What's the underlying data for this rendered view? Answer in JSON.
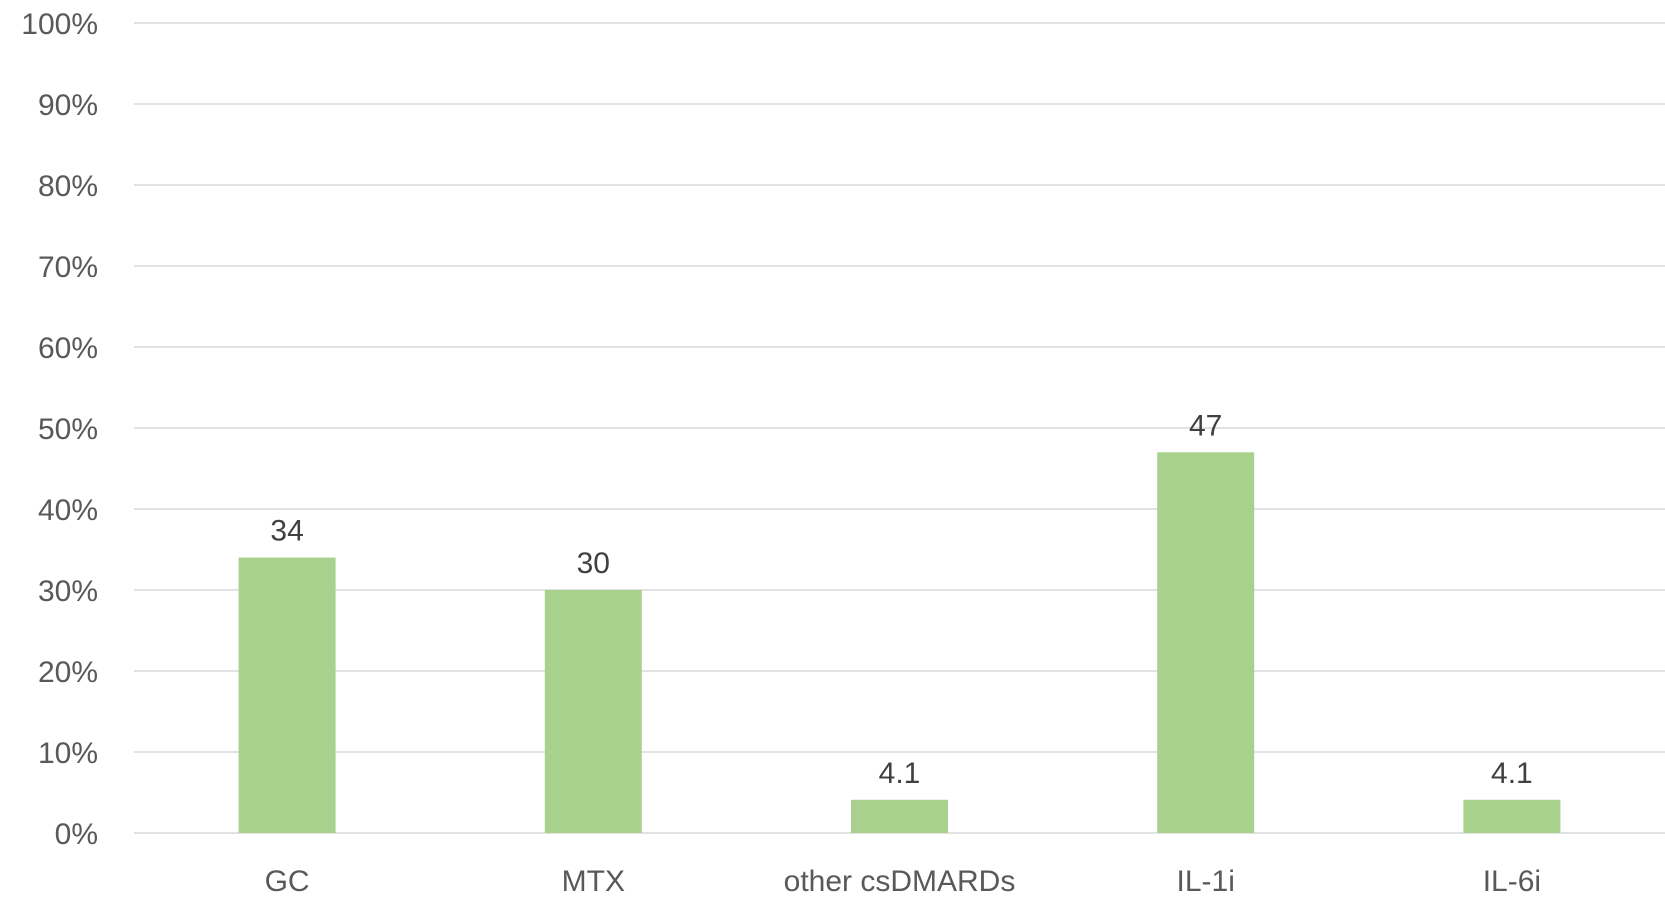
{
  "chart_data": {
    "type": "bar",
    "categories": [
      "GC",
      "MTX",
      "other csDMARDs",
      "IL-1i",
      "IL-6i"
    ],
    "values": [
      34,
      30,
      4.1,
      47,
      4.1
    ],
    "data_labels": [
      "34",
      "30",
      "4.1",
      "47",
      "4.1"
    ],
    "ylim": [
      0,
      100
    ],
    "yticks": [
      0,
      10,
      20,
      30,
      40,
      50,
      60,
      70,
      80,
      90,
      100
    ],
    "ytick_labels": [
      "0%",
      "10%",
      "20%",
      "30%",
      "40%",
      "50%",
      "60%",
      "70%",
      "80%",
      "90%",
      "100%"
    ],
    "title": "",
    "xlabel": "",
    "ylabel": "",
    "grid": true,
    "legend": "none",
    "bar_color": "#a9d18e"
  }
}
